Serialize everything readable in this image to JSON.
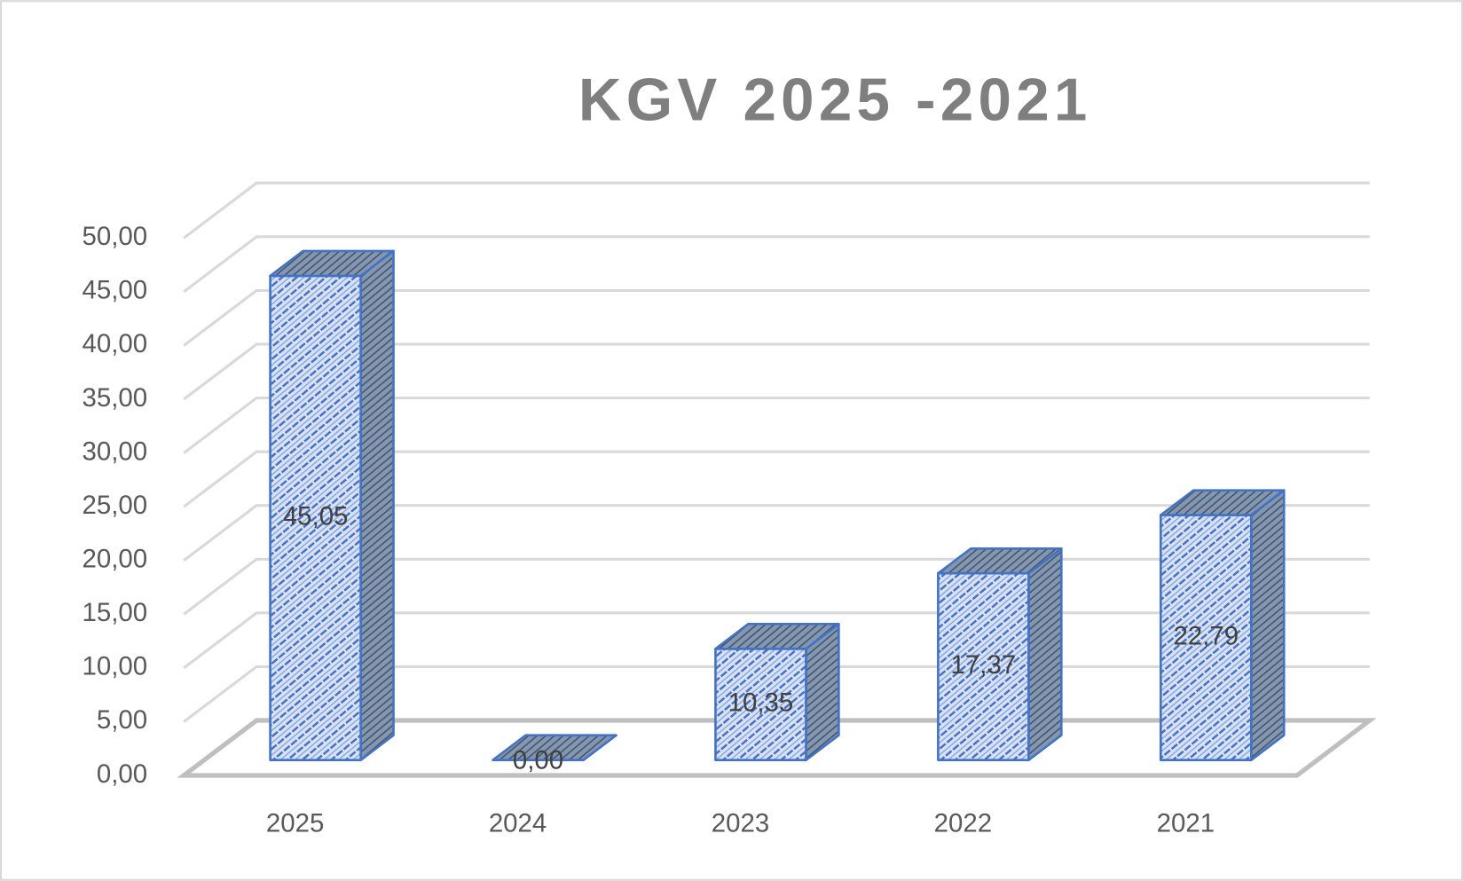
{
  "chart_data": {
    "type": "bar3d",
    "title": "KGV 2025 -2021",
    "categories": [
      "2025",
      "2024",
      "2023",
      "2022",
      "2021"
    ],
    "values": [
      45.05,
      0,
      10.35,
      17.37,
      22.79
    ],
    "value_labels": [
      "45,05",
      "0,00",
      "10,35",
      "17,37",
      "22,79"
    ],
    "color": "#4472c4",
    "ylim": [
      0,
      50
    ],
    "yticks": [
      {
        "value": 0,
        "label": "0,00"
      },
      {
        "value": 5,
        "label": "5,00"
      },
      {
        "value": 10,
        "label": "10,00"
      },
      {
        "value": 15,
        "label": "15,00"
      },
      {
        "value": 20,
        "label": "20,00"
      },
      {
        "value": 25,
        "label": "25,00"
      },
      {
        "value": 30,
        "label": "30,00"
      },
      {
        "value": 35,
        "label": "35,00"
      },
      {
        "value": 40,
        "label": "40,00"
      },
      {
        "value": 45,
        "label": "45,00"
      },
      {
        "value": 50,
        "label": "50,00"
      }
    ],
    "grid": true
  }
}
